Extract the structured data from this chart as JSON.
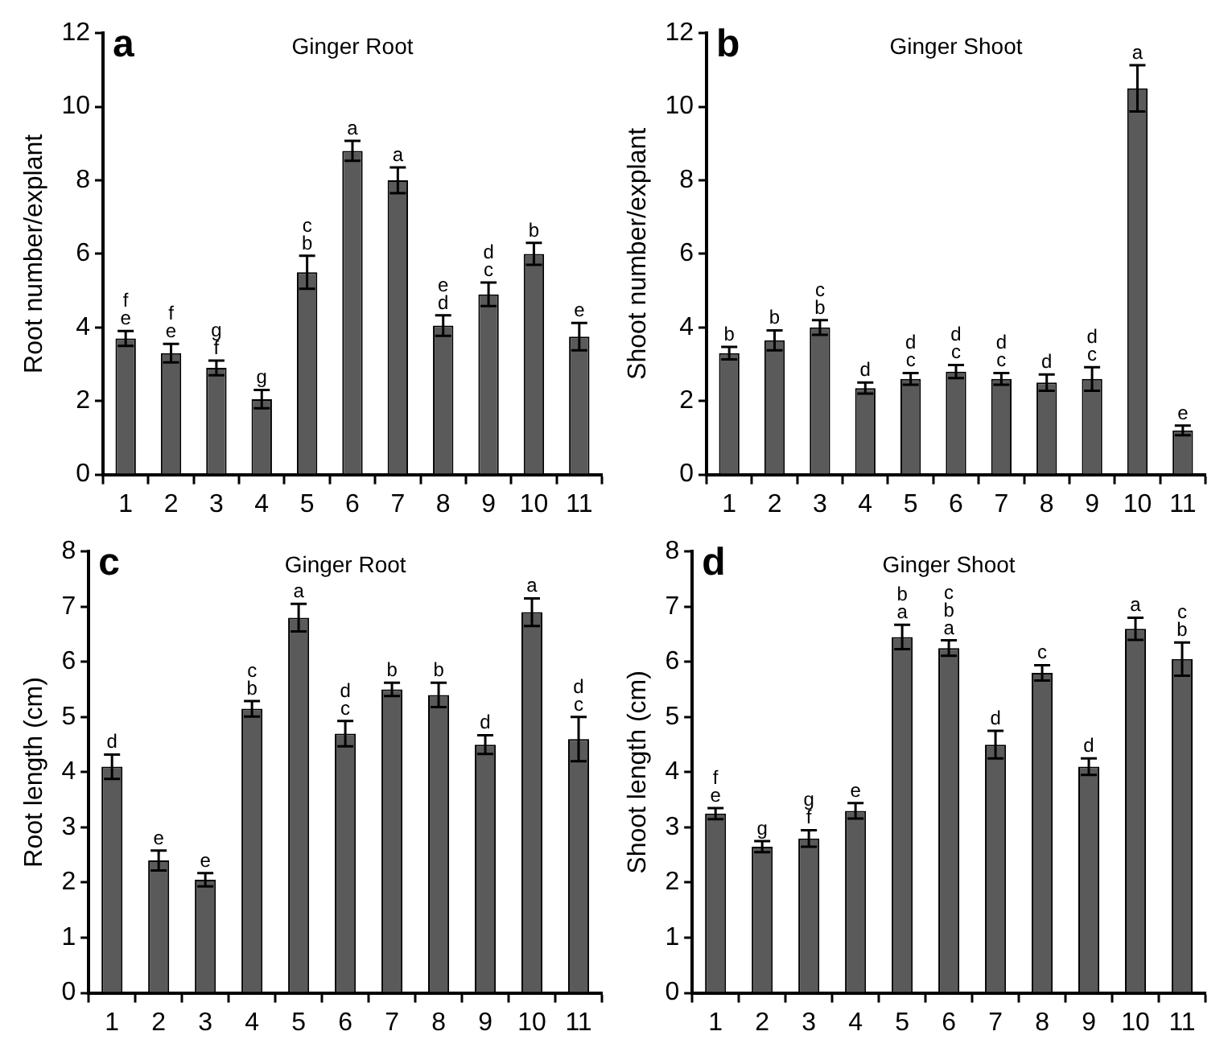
{
  "chart_data": [
    {
      "type": "bar",
      "title": "Ginger Root",
      "annotations": [
        "a"
      ],
      "ylabel": "Root number/explant",
      "categories": [
        "1",
        "2",
        "3",
        "4",
        "5",
        "6",
        "7",
        "8",
        "9",
        "10",
        "11"
      ],
      "color": "#5a5a5a",
      "ylim": [
        0,
        12
      ],
      "yticks": [
        0,
        2,
        4,
        6,
        8,
        10,
        12
      ],
      "values": [
        3.7,
        3.3,
        2.9,
        2.05,
        5.5,
        8.8,
        8.0,
        4.05,
        4.9,
        6.0,
        3.75
      ],
      "errors": [
        0.2,
        0.25,
        0.2,
        0.25,
        0.45,
        0.27,
        0.35,
        0.28,
        0.32,
        0.3,
        0.37
      ],
      "value_labels": [
        "f e",
        "f e",
        "g f",
        "g",
        "c b",
        "a",
        "a",
        "e d",
        "d c",
        "b",
        "e"
      ]
    },
    {
      "type": "bar",
      "title": "Ginger Shoot",
      "annotations": [
        "b"
      ],
      "ylabel": "Shoot number/explant",
      "categories": [
        "1",
        "2",
        "3",
        "4",
        "5",
        "6",
        "7",
        "8",
        "9",
        "10",
        "11"
      ],
      "color": "#5a5a5a",
      "ylim": [
        0,
        12
      ],
      "yticks": [
        0,
        2,
        4,
        6,
        8,
        10,
        12
      ],
      "values": [
        3.3,
        3.65,
        4.0,
        2.35,
        2.6,
        2.8,
        2.6,
        2.5,
        2.6,
        10.5,
        1.2
      ],
      "errors": [
        0.17,
        0.27,
        0.2,
        0.15,
        0.16,
        0.18,
        0.16,
        0.22,
        0.32,
        0.63,
        0.13
      ],
      "value_labels": [
        "b",
        "b",
        "c b",
        "d",
        "d c",
        "d c",
        "d c",
        "d",
        "d c",
        "a",
        "e"
      ]
    },
    {
      "type": "bar",
      "title": "Ginger Root",
      "annotations": [
        "c"
      ],
      "ylabel": "Root length (cm)",
      "categories": [
        "1",
        "2",
        "3",
        "4",
        "5",
        "6",
        "7",
        "8",
        "9",
        "10",
        "11"
      ],
      "color": "#5a5a5a",
      "ylim": [
        0,
        8
      ],
      "yticks": [
        0,
        1,
        2,
        3,
        4,
        5,
        6,
        7,
        8
      ],
      "values": [
        4.1,
        2.4,
        2.05,
        5.15,
        6.8,
        4.7,
        5.5,
        5.4,
        4.5,
        6.9,
        4.6
      ],
      "errors": [
        0.22,
        0.18,
        0.12,
        0.14,
        0.25,
        0.23,
        0.12,
        0.22,
        0.17,
        0.25,
        0.4
      ],
      "value_labels": [
        "d",
        "e",
        "e",
        "c b",
        "a",
        "d c",
        "b",
        "b",
        "d",
        "a",
        "d c"
      ]
    },
    {
      "type": "bar",
      "title": "Ginger Shoot",
      "annotations": [
        "d"
      ],
      "ylabel": "Shoot length (cm)",
      "categories": [
        "1",
        "2",
        "3",
        "4",
        "5",
        "6",
        "7",
        "8",
        "9",
        "10",
        "11"
      ],
      "color": "#5a5a5a",
      "ylim": [
        0,
        8
      ],
      "yticks": [
        0,
        1,
        2,
        3,
        4,
        5,
        6,
        7,
        8
      ],
      "values": [
        3.25,
        2.65,
        2.8,
        3.3,
        6.45,
        6.25,
        4.5,
        5.8,
        4.1,
        6.6,
        6.05
      ],
      "errors": [
        0.1,
        0.1,
        0.15,
        0.14,
        0.22,
        0.14,
        0.25,
        0.14,
        0.15,
        0.2,
        0.3
      ],
      "value_labels": [
        "f e",
        "g",
        "g f",
        "e",
        "b a",
        "c b a",
        "d",
        "c",
        "d",
        "a",
        "c b"
      ]
    }
  ]
}
